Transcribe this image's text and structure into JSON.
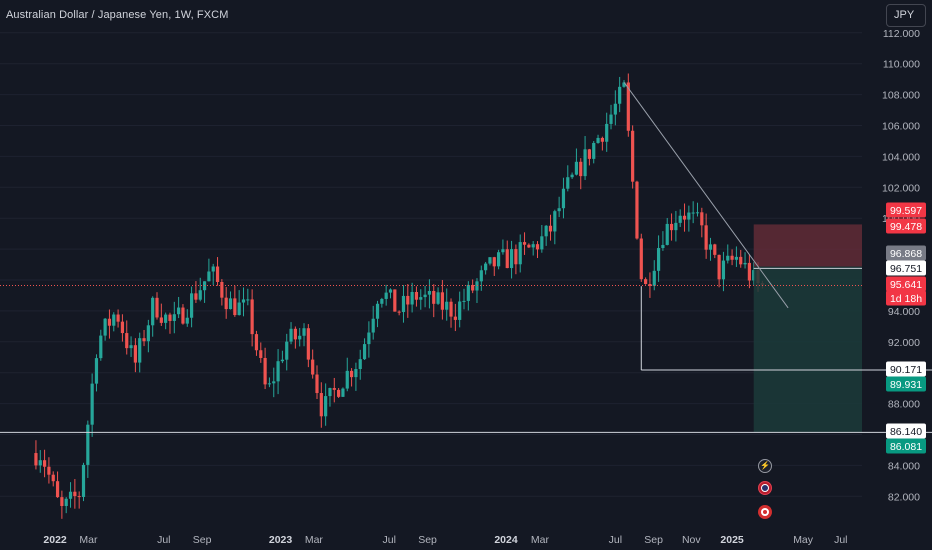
{
  "header": {
    "symbol_title": "Australian Dollar / Japanese Yen, 1W, FXCM",
    "currency_button": "JPY"
  },
  "colors": {
    "background": "#141823",
    "up": "#26a69a",
    "down": "#ef5350",
    "grid": "#1e2230",
    "axis_text": "#b2b5be",
    "level_line": "#d1d4dc",
    "trendline": "#9aa0ab",
    "stop_zone": "#6b2d3a",
    "target_zone": "#1b3b3a"
  },
  "chart_data": {
    "type": "candlestick",
    "title": "Australian Dollar / Japanese Yen, 1W, FXCM",
    "timeframe": "1W",
    "ylim": [
      79.6,
      112.6
    ],
    "y_ticks": [
      "82.000",
      "84.000",
      "86.000",
      "88.000",
      "90.000",
      "92.000",
      "94.000",
      "96.000",
      "98.000",
      "100.000",
      "102.000",
      "104.000",
      "106.000",
      "108.000",
      "110.000",
      "112.000"
    ],
    "x_ticks": [
      "2022",
      "Mar",
      "Jul",
      "Sep",
      "2023",
      "Mar",
      "Jul",
      "Sep",
      "2024",
      "Mar",
      "Jul",
      "Sep",
      "Nov",
      "2025",
      "May",
      "Jul"
    ],
    "price_path_keypoints": [
      {
        "t": "2021-12",
        "close": 84.8
      },
      {
        "t": "2022-01",
        "close": 81.0
      },
      {
        "t": "2022-02",
        "close": 82.2
      },
      {
        "t": "2022-03",
        "close": 92.0
      },
      {
        "t": "2022-04",
        "close": 94.0
      },
      {
        "t": "2022-05",
        "close": 90.5
      },
      {
        "t": "2022-06",
        "close": 94.5
      },
      {
        "t": "2022-07",
        "close": 93.0
      },
      {
        "t": "2022-09",
        "close": 96.5
      },
      {
        "t": "2022-10",
        "close": 94.5
      },
      {
        "t": "2022-11",
        "close": 94.0
      },
      {
        "t": "2022-12",
        "close": 88.5
      },
      {
        "t": "2023-01",
        "close": 92.0
      },
      {
        "t": "2023-02",
        "close": 92.5
      },
      {
        "t": "2023-03",
        "close": 87.5
      },
      {
        "t": "2023-04",
        "close": 89.5
      },
      {
        "t": "2023-05",
        "close": 91.0
      },
      {
        "t": "2023-06",
        "close": 95.5
      },
      {
        "t": "2023-07",
        "close": 94.0
      },
      {
        "t": "2023-08",
        "close": 95.0
      },
      {
        "t": "2023-10",
        "close": 94.0
      },
      {
        "t": "2023-12",
        "close": 97.0
      },
      {
        "t": "2024-01",
        "close": 97.5
      },
      {
        "t": "2024-02",
        "close": 98.0
      },
      {
        "t": "2024-03",
        "close": 99.0
      },
      {
        "t": "2024-04",
        "close": 102.0
      },
      {
        "t": "2024-05",
        "close": 104.0
      },
      {
        "t": "2024-06",
        "close": 106.0
      },
      {
        "t": "2024-07",
        "close": 108.3
      },
      {
        "t": "2024-08",
        "close": 95.0
      },
      {
        "t": "2024-09",
        "close": 99.0
      },
      {
        "t": "2024-10",
        "close": 100.5
      },
      {
        "t": "2024-11",
        "close": 99.5
      },
      {
        "t": "2024-12",
        "close": 96.5
      },
      {
        "t": "2025-01",
        "close": 97.5
      },
      {
        "t": "2025-02",
        "close": 95.641
      }
    ],
    "horizontal_levels": [
      86.14,
      90.171
    ],
    "trendline": {
      "from": {
        "t": "2024-07",
        "price": 108.8
      },
      "to": {
        "t": "2025-03",
        "price": 94.2
      }
    },
    "position": {
      "type": "short",
      "stop_zone": [
        96.868,
        99.597
      ],
      "target_zone": [
        86.14,
        96.868
      ]
    },
    "price_labels": [
      {
        "text": "99.597",
        "price": 99.597,
        "style": "stop"
      },
      {
        "text": "99.478",
        "price": 99.478,
        "style": "stop"
      },
      {
        "text": "96.868",
        "price": 96.868,
        "style": "gray"
      },
      {
        "text": "96.751",
        "price": 96.751,
        "style": "white"
      },
      {
        "text": "95.641",
        "price": 95.641,
        "style": "current"
      },
      {
        "text": "1d 18h",
        "price": 94.85,
        "style": "current"
      },
      {
        "text": "90.171",
        "price": 90.171,
        "style": "white"
      },
      {
        "text": "89.931",
        "price": 89.931,
        "style": "target"
      },
      {
        "text": "86.140",
        "price": 86.14,
        "style": "white"
      },
      {
        "text": "86.081",
        "price": 86.081,
        "style": "target"
      }
    ],
    "current_price": 95.641,
    "countdown": "1d 18h"
  },
  "indicators": {
    "bolt_icon": "lightning-icon",
    "flag_icon": "australia-flag-icon",
    "record_icon": "record-icon"
  }
}
